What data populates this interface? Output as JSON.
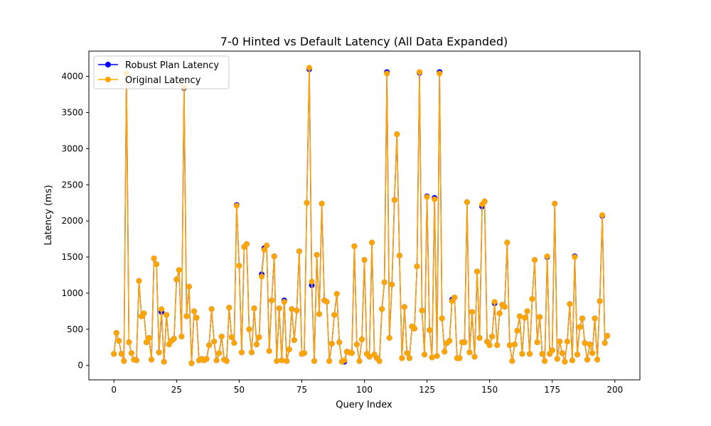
{
  "chart_data": {
    "type": "line",
    "title": "7-0 Hinted vs Default Latency (All Data Expanded)",
    "xlabel": "Query Index",
    "ylabel": "Latency (ms)",
    "xlim": [
      -10,
      210
    ],
    "ylim": [
      -200,
      4350
    ],
    "xticks": [
      0,
      25,
      50,
      75,
      100,
      125,
      150,
      175,
      200
    ],
    "yticks": [
      0,
      500,
      1000,
      1500,
      2000,
      2500,
      3000,
      3500,
      4000
    ],
    "grid": false,
    "legend_placement": "top-left",
    "series": [
      {
        "name": "Robust Plan Latency",
        "color": "#0000ff",
        "marker": "circle",
        "values": [
          160,
          450,
          340,
          160,
          60,
          4040,
          320,
          170,
          80,
          70,
          1170,
          680,
          720,
          320,
          380,
          80,
          1480,
          1400,
          180,
          740,
          50,
          700,
          290,
          340,
          370,
          1190,
          1320,
          400,
          3840,
          680,
          1090,
          30,
          750,
          660,
          70,
          90,
          70,
          90,
          280,
          780,
          330,
          70,
          170,
          400,
          80,
          60,
          800,
          390,
          310,
          2220,
          1380,
          180,
          1640,
          1680,
          500,
          180,
          790,
          290,
          390,
          1260,
          1620,
          1660,
          200,
          900,
          1510,
          60,
          790,
          70,
          900,
          60,
          220,
          780,
          350,
          760,
          1580,
          160,
          170,
          2250,
          4100,
          1110,
          60,
          1530,
          710,
          2240,
          900,
          880,
          60,
          300,
          700,
          990,
          320,
          50,
          50,
          190,
          180,
          170,
          1650,
          290,
          60,
          360,
          1460,
          160,
          120,
          1700,
          150,
          100,
          60,
          780,
          1150,
          4060,
          380,
          1120,
          2290,
          3200,
          1520,
          100,
          810,
          170,
          100,
          540,
          510,
          1370,
          4050,
          760,
          150,
          2340,
          490,
          110,
          2320,
          130,
          4060,
          650,
          190,
          310,
          340,
          910,
          940,
          100,
          100,
          320,
          320,
          2260,
          180,
          740,
          120,
          1300,
          380,
          2200,
          2270,
          330,
          280,
          400,
          860,
          280,
          720,
          840,
          810,
          1700,
          280,
          60,
          290,
          480,
          680,
          160,
          660,
          750,
          160,
          920,
          1460,
          320,
          670,
          160,
          60,
          1500,
          160,
          210,
          2240,
          90,
          330,
          170,
          50,
          330,
          850,
          70,
          1510,
          150,
          530,
          650,
          310,
          80,
          290,
          170,
          650,
          80,
          890,
          2070,
          310,
          410
        ]
      },
      {
        "name": "Original Latency",
        "color": "#ffa500",
        "marker": "circle",
        "values": [
          160,
          450,
          340,
          160,
          60,
          4040,
          320,
          170,
          80,
          70,
          1170,
          680,
          720,
          320,
          380,
          80,
          1480,
          1400,
          180,
          780,
          50,
          700,
          290,
          340,
          370,
          1190,
          1320,
          400,
          3850,
          680,
          1090,
          30,
          750,
          660,
          70,
          90,
          70,
          90,
          280,
          780,
          330,
          70,
          170,
          400,
          80,
          60,
          800,
          390,
          310,
          2210,
          1380,
          180,
          1640,
          1680,
          500,
          180,
          790,
          290,
          390,
          1230,
          1600,
          1660,
          200,
          900,
          1510,
          60,
          790,
          70,
          880,
          60,
          220,
          780,
          350,
          760,
          1580,
          160,
          170,
          2250,
          4120,
          1160,
          60,
          1530,
          710,
          2240,
          900,
          880,
          60,
          300,
          700,
          990,
          320,
          50,
          70,
          190,
          180,
          170,
          1650,
          290,
          60,
          360,
          1460,
          160,
          120,
          1700,
          150,
          100,
          60,
          780,
          1150,
          4040,
          380,
          1120,
          2290,
          3200,
          1520,
          100,
          810,
          170,
          100,
          540,
          510,
          1370,
          4060,
          760,
          150,
          2330,
          490,
          110,
          2300,
          130,
          4040,
          650,
          190,
          310,
          340,
          890,
          940,
          100,
          100,
          320,
          320,
          2260,
          180,
          740,
          120,
          1300,
          380,
          2230,
          2270,
          330,
          280,
          400,
          880,
          280,
          720,
          840,
          810,
          1700,
          280,
          60,
          290,
          480,
          680,
          160,
          660,
          750,
          160,
          920,
          1460,
          320,
          670,
          160,
          60,
          1510,
          160,
          210,
          2240,
          90,
          330,
          170,
          50,
          330,
          850,
          70,
          1500,
          150,
          530,
          650,
          310,
          80,
          290,
          170,
          650,
          80,
          890,
          2080,
          310,
          410
        ]
      }
    ]
  }
}
